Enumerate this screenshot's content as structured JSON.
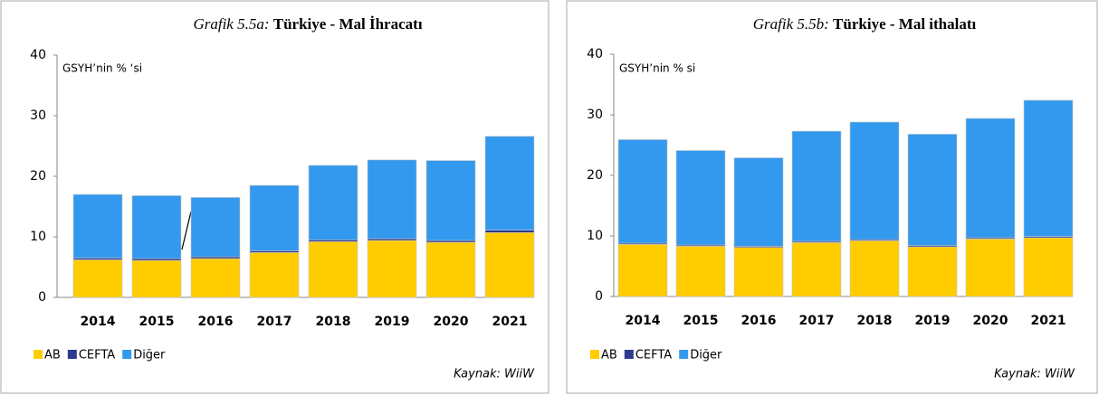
{
  "chart_data": [
    {
      "type": "bar",
      "stacked": true,
      "label": "Grafik 5.5a:",
      "title": "Türkiye - Mal İhracatı",
      "subtitle": "GSYH’nin % ‘si",
      "source": "Kaynak: WiiW",
      "categories": [
        "2014",
        "2015",
        "2016",
        "2017",
        "2018",
        "2019",
        "2020",
        "2021"
      ],
      "series": [
        {
          "name": "AB",
          "color": "#ffcc00",
          "values": [
            6.2,
            6.1,
            6.4,
            7.4,
            9.2,
            9.4,
            9.1,
            10.7
          ]
        },
        {
          "name": "CEFTA",
          "color": "#2e3a8c",
          "values": [
            0.3,
            0.3,
            0.3,
            0.3,
            0.3,
            0.3,
            0.3,
            0.4
          ]
        },
        {
          "name": "Diğer",
          "color": "#3399ee",
          "values": [
            10.5,
            10.4,
            9.8,
            10.8,
            12.3,
            13.0,
            13.2,
            15.5
          ]
        }
      ],
      "ylim": [
        0,
        40
      ],
      "yticks": [
        0,
        10,
        20,
        30,
        40
      ],
      "legend": "bottom-left"
    },
    {
      "type": "bar",
      "stacked": true,
      "label": "Grafik 5.5b:",
      "title": "Türkiye - Mal ithalatı",
      "subtitle": "GSYH’nin % si",
      "source": "Kaynak: WiiW",
      "categories": [
        "2014",
        "2015",
        "2016",
        "2017",
        "2018",
        "2019",
        "2020",
        "2021"
      ],
      "series": [
        {
          "name": "AB",
          "color": "#ffcc00",
          "values": [
            8.6,
            8.3,
            8.1,
            8.9,
            9.2,
            8.2,
            9.5,
            9.7
          ]
        },
        {
          "name": "CEFTA",
          "color": "#2e3a8c",
          "values": [
            0.2,
            0.2,
            0.2,
            0.2,
            0.2,
            0.2,
            0.2,
            0.2
          ]
        },
        {
          "name": "Diğer",
          "color": "#3399ee",
          "values": [
            17.1,
            15.6,
            14.6,
            18.2,
            19.4,
            18.4,
            19.7,
            22.5
          ]
        }
      ],
      "ylim": [
        0,
        40
      ],
      "yticks": [
        0,
        10,
        20,
        30,
        40
      ],
      "legend": "bottom-left"
    }
  ]
}
